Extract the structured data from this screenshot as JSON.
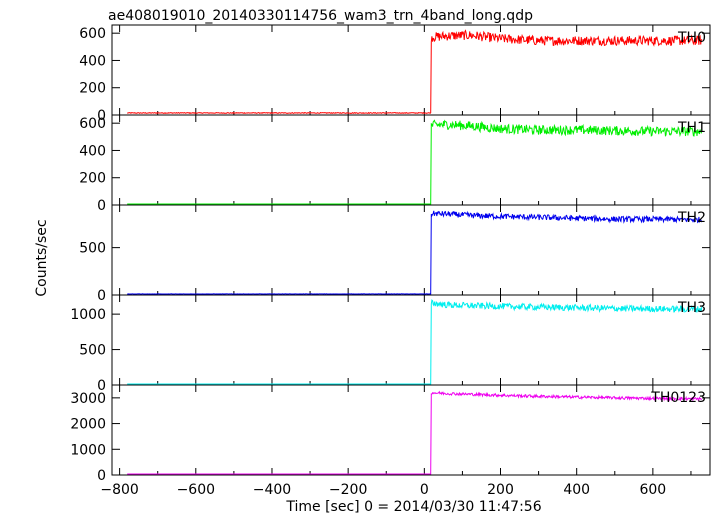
{
  "chart_data": {
    "type": "line",
    "title": "ae408019010_20140330114756_wam3_trn_4band_long.qdp",
    "xlabel": "Time [sec] 0 = 2014/03/30 11:47:56",
    "ylabel": "Counts/sec",
    "xlim": [
      -820,
      750
    ],
    "xticks": [
      -800,
      -600,
      -400,
      -200,
      0,
      200,
      400,
      600
    ],
    "data_span": [
      -780,
      730
    ],
    "step_time": 18,
    "panels": [
      {
        "name": "TH0",
        "color": "#ff0000",
        "ylim": [
          0,
          660
        ],
        "yticks": [
          0,
          200,
          400,
          600
        ],
        "x": [
          -780,
          17,
          18,
          60,
          120,
          200,
          300,
          400,
          500,
          600,
          730
        ],
        "y": [
          15,
          15,
          570,
          580,
          585,
          560,
          545,
          545,
          545,
          545,
          545
        ],
        "noise": 35
      },
      {
        "name": "TH1",
        "color": "#00ee00",
        "ylim": [
          0,
          660
        ],
        "yticks": [
          0,
          200,
          400,
          600
        ],
        "x": [
          -780,
          17,
          18,
          60,
          120,
          200,
          300,
          400,
          500,
          600,
          730
        ],
        "y": [
          3,
          3,
          585,
          590,
          580,
          560,
          550,
          550,
          545,
          540,
          540
        ],
        "noise": 35
      },
      {
        "name": "TH2",
        "color": "#0000ee",
        "ylim": [
          0,
          950
        ],
        "yticks": [
          0,
          500
        ],
        "x": [
          -780,
          17,
          18,
          60,
          120,
          200,
          300,
          400,
          500,
          600,
          730
        ],
        "y": [
          10,
          10,
          860,
          855,
          840,
          830,
          820,
          810,
          800,
          800,
          795
        ],
        "noise": 30
      },
      {
        "name": "TH3",
        "color": "#00eeee",
        "ylim": [
          0,
          1270
        ],
        "yticks": [
          0,
          500,
          1000
        ],
        "x": [
          -780,
          17,
          18,
          60,
          120,
          200,
          300,
          400,
          500,
          600,
          730
        ],
        "y": [
          10,
          10,
          1160,
          1130,
          1120,
          1110,
          1100,
          1090,
          1080,
          1075,
          1070
        ],
        "noise": 45
      },
      {
        "name": "TH0123",
        "color": "#ee00ee",
        "ylim": [
          0,
          3500
        ],
        "yticks": [
          0,
          1000,
          2000,
          3000
        ],
        "x": [
          -780,
          17,
          18,
          60,
          120,
          200,
          300,
          400,
          500,
          600,
          730
        ],
        "y": [
          30,
          30,
          3200,
          3170,
          3140,
          3100,
          3060,
          3030,
          3000,
          2980,
          2960
        ],
        "noise": 55
      }
    ]
  }
}
